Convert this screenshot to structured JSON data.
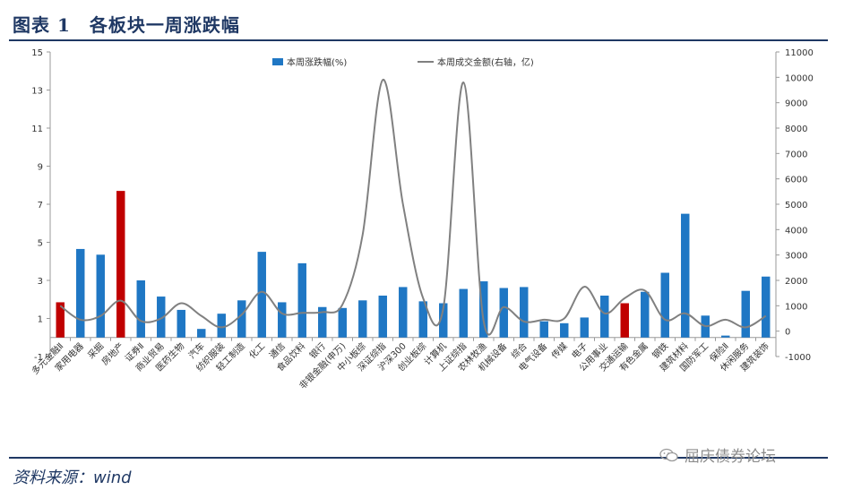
{
  "figure": {
    "title": "图表 1　各板块一周涨跌幅",
    "source": "资料来源：wind",
    "watermark": "屈庆债券论坛",
    "watermark_icon": "wechat-icon"
  },
  "colors": {
    "bar": "#1f77c4",
    "highlight": "#c00000",
    "line": "#808080",
    "rule": "#1f3864"
  },
  "chart_data": {
    "type": "bar",
    "categories": [
      "多元金融Ⅱ",
      "家用电器",
      "采掘",
      "房地产",
      "证券Ⅱ",
      "商业贸易",
      "医药生物",
      "汽车",
      "纺织服装",
      "轻工制造",
      "化工",
      "通信",
      "食品饮料",
      "银行",
      "非银金融(申万)",
      "中小板综",
      "深证综指",
      "沪深300",
      "创业板综",
      "计算机",
      "上证综指",
      "农林牧渔",
      "机械设备",
      "综合",
      "电气设备",
      "传媒",
      "电子",
      "公用事业",
      "交通运输",
      "有色金属",
      "钢铁",
      "建筑材料",
      "国防军工",
      "保险Ⅱ",
      "休闲服务",
      "建筑装饰"
    ],
    "series": [
      {
        "name": "本周涨跌幅(%)",
        "axis": "left",
        "type": "bar",
        "values": [
          1.85,
          4.65,
          4.35,
          7.7,
          3.0,
          2.15,
          1.45,
          0.45,
          1.25,
          1.95,
          4.5,
          1.85,
          3.9,
          1.6,
          1.55,
          1.95,
          2.2,
          2.65,
          1.9,
          1.8,
          2.55,
          2.95,
          2.6,
          2.65,
          0.85,
          0.75,
          1.05,
          2.2,
          1.8,
          2.4,
          3.4,
          6.5,
          1.15,
          0.1,
          2.45,
          3.2
        ],
        "highlight_indices": [
          0,
          3,
          28
        ]
      },
      {
        "name": "本周成交金额(右轴，亿)",
        "axis": "right",
        "type": "line",
        "values": [
          1000,
          450,
          600,
          1200,
          400,
          500,
          1100,
          600,
          150,
          650,
          1550,
          700,
          720,
          750,
          1050,
          3800,
          9900,
          5000,
          1300,
          900,
          9800,
          400,
          950,
          380,
          450,
          500,
          1750,
          700,
          1300,
          1600,
          450,
          700,
          200,
          450,
          150,
          600
        ]
      }
    ],
    "y_left": {
      "lim": [
        -1,
        15
      ],
      "ticks": [
        -1,
        1,
        3,
        5,
        7,
        9,
        11,
        13,
        15
      ]
    },
    "y_right": {
      "lim": [
        -1000,
        11000
      ],
      "ticks": [
        -1000,
        0,
        1000,
        2000,
        3000,
        4000,
        5000,
        6000,
        7000,
        8000,
        9000,
        10000,
        11000
      ]
    },
    "legend_position": "top",
    "grid": false
  }
}
